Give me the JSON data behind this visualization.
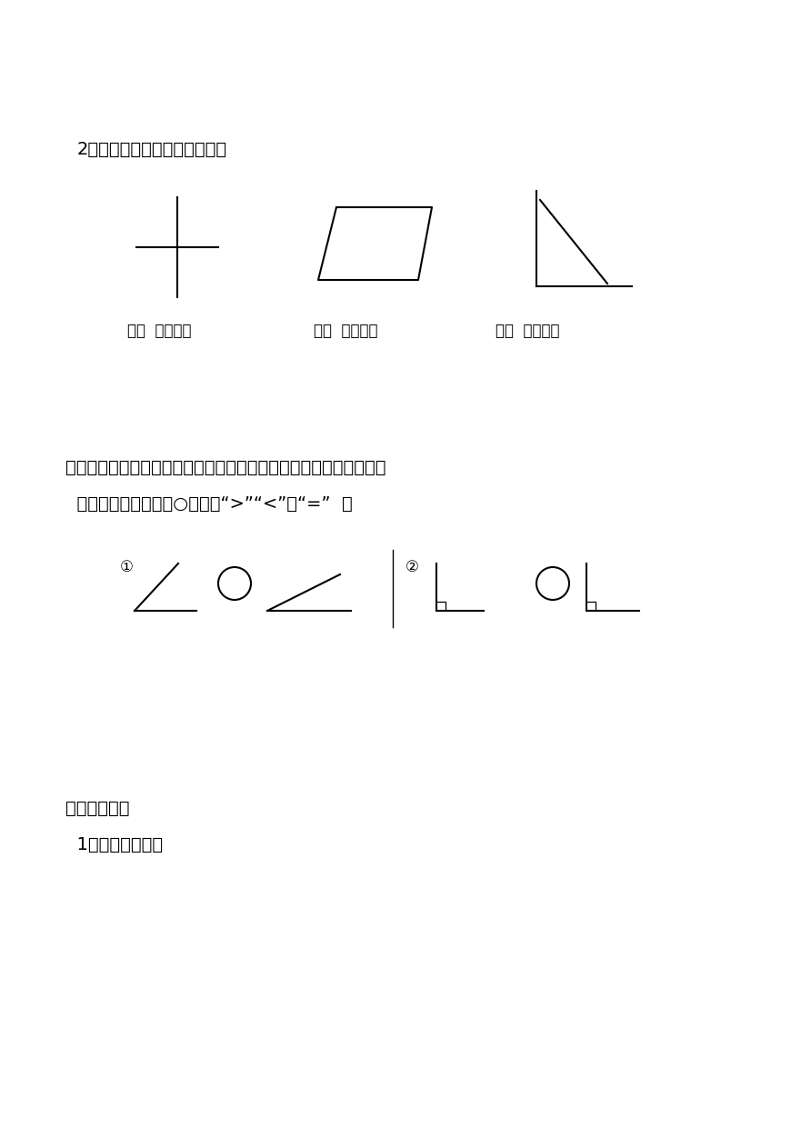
{
  "bg_color": "#ffffff",
  "text_color": "#000000",
  "section2_label": "2．下面图形中各有几个直角。",
  "label_fontsize": 14,
  "answer_text": "有（  ）个直角",
  "answer_fontsize": 12,
  "section5_line1": "五、比一比。（用三角板上的角比比看：下面各题左右两个角，哪个",
  "section5_line2": "  角大？哪个角小？在○里填上“>”“<”或“=”  ）",
  "section5_fontsize": 14,
  "circle_label1": "①",
  "circle_label2": "②",
  "section6_title": "六、画一画。",
  "section6_sub": "  1．画一个直角。",
  "section6_fontsize": 14
}
